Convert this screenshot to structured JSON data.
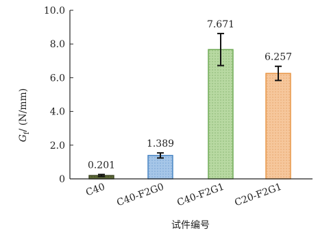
{
  "chart_data": {
    "type": "bar",
    "categories": [
      "C40",
      "C40-F2G0",
      "C40-F2G1",
      "C20-F2G1"
    ],
    "values": [
      0.201,
      1.389,
      7.671,
      6.257
    ],
    "value_labels": [
      "0.201",
      "1.389",
      "7.671",
      "6.257"
    ],
    "error_bars": [
      0.06,
      0.15,
      0.95,
      0.42
    ],
    "ylim": [
      0,
      10
    ],
    "yticks": [
      0,
      2,
      4,
      6,
      8,
      10
    ],
    "ytick_labels": [
      "0",
      "2.0",
      "4.0",
      "6.0",
      "8.0",
      "10.0"
    ],
    "xlabel": "试件编号",
    "ylabel_symbol": "G",
    "ylabel_subscript": "f",
    "ylabel_unit": "/ (N/mm)",
    "grid": false,
    "bar_fill_colors": [
      "#5e6b38",
      "#a6c6e8",
      "#b8d9a2",
      "#f6c79c"
    ],
    "bar_edge_colors": [
      "#3b4524",
      "#3f7fc0",
      "#6aa84f",
      "#e7913e"
    ]
  }
}
